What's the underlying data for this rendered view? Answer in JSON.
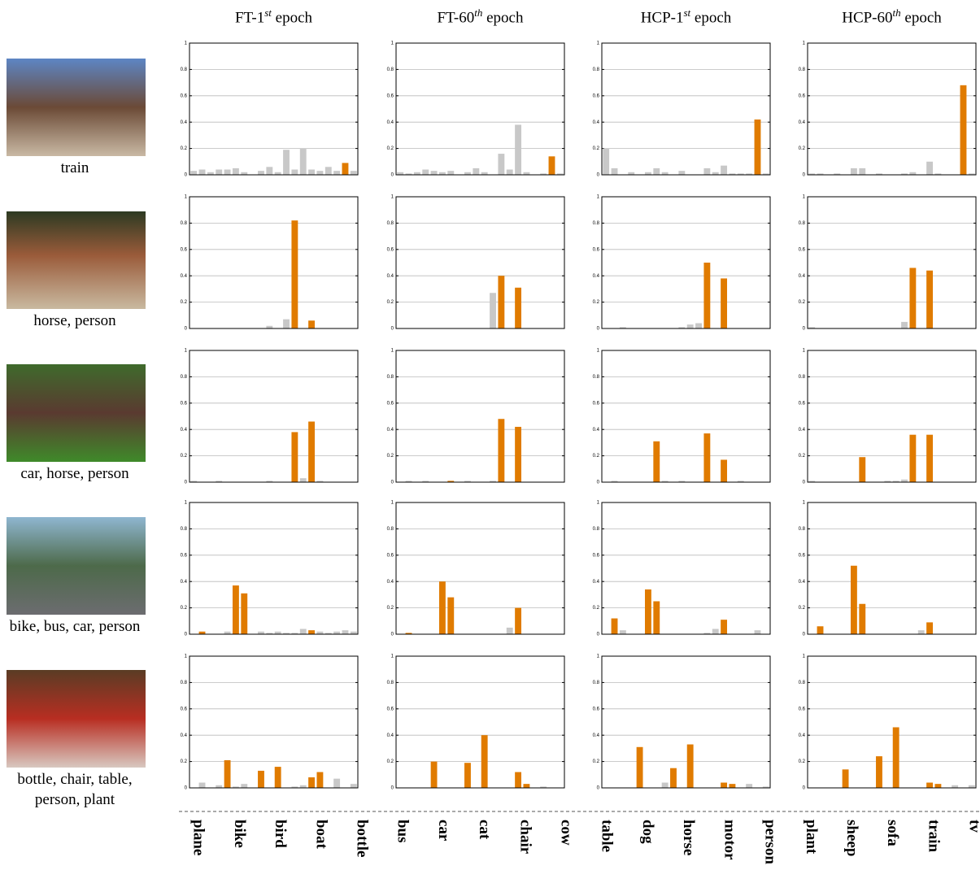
{
  "columns": [
    {
      "text": "FT-1",
      "sup": "st",
      "after": " epoch"
    },
    {
      "text": "FT-60",
      "sup": "th",
      "after": " epoch"
    },
    {
      "text": "HCP-1",
      "sup": "st",
      "after": " epoch"
    },
    {
      "text": "HCP-60",
      "sup": "th",
      "after": " epoch"
    }
  ],
  "rows": [
    {
      "label": "train",
      "highlight": [
        18
      ]
    },
    {
      "label": "horse, person",
      "highlight": [
        12,
        14
      ]
    },
    {
      "label": "car, horse, person",
      "highlight": [
        6,
        12,
        14
      ]
    },
    {
      "label": "bike, bus, car, person",
      "highlight": [
        1,
        5,
        6,
        14
      ]
    },
    {
      "label": "bottle, chair, table, person, plant",
      "highlight": [
        4,
        8,
        10,
        14,
        15
      ]
    }
  ],
  "categories": [
    "plane",
    "bike",
    "bird",
    "boat",
    "bottle",
    "bus",
    "car",
    "cat",
    "chair",
    "cow",
    "table",
    "dog",
    "horse",
    "motor",
    "person",
    "plant",
    "sheep",
    "sofa",
    "train",
    "tv"
  ],
  "chart_data": [
    {
      "type": "bar",
      "values": [
        0.03,
        0.04,
        0.02,
        0.04,
        0.04,
        0.05,
        0.02,
        0,
        0.03,
        0.06,
        0.02,
        0.19,
        0.04,
        0.2,
        0.04,
        0.03,
        0.06,
        0.03,
        0.09,
        0.03
      ],
      "ylim": [
        0,
        1
      ],
      "yticks": [
        0,
        0.2,
        0.4,
        0.6,
        0.8,
        1
      ],
      "grid": true,
      "color": "#c8c8c8",
      "highlight_color": "#e07b00"
    },
    {
      "type": "bar",
      "values": [
        0.02,
        0.01,
        0.02,
        0.04,
        0.03,
        0.02,
        0.03,
        0,
        0.02,
        0.05,
        0.02,
        0,
        0.16,
        0.04,
        0.38,
        0.02,
        0,
        0.01,
        0.14,
        0.01
      ],
      "ylim": [
        0,
        1
      ],
      "yticks": [
        0,
        0.2,
        0.4,
        0.6,
        0.8,
        1
      ],
      "grid": true,
      "color": "#c8c8c8",
      "highlight_color": "#e07b00"
    },
    {
      "type": "bar",
      "values": [
        0.2,
        0.05,
        0,
        0.02,
        0,
        0.02,
        0.05,
        0.02,
        0,
        0.03,
        0,
        0,
        0.05,
        0.02,
        0.07,
        0.01,
        0.01,
        0.01,
        0.42,
        0.01
      ],
      "ylim": [
        0,
        1
      ],
      "yticks": [
        0,
        0.2,
        0.4,
        0.6,
        0.8,
        1
      ],
      "grid": true,
      "color": "#c8c8c8",
      "highlight_color": "#e07b00"
    },
    {
      "type": "bar",
      "values": [
        0.01,
        0.01,
        0,
        0.01,
        0,
        0.05,
        0.05,
        0,
        0.01,
        0,
        0,
        0.01,
        0.02,
        0,
        0.1,
        0.01,
        0,
        0,
        0.68,
        0.01
      ],
      "ylim": [
        0,
        1
      ],
      "yticks": [
        0,
        0.2,
        0.4,
        0.6,
        0.8,
        1
      ],
      "grid": true,
      "color": "#c8c8c8",
      "highlight_color": "#e07b00"
    },
    {
      "type": "bar",
      "values": [
        0,
        0,
        0,
        0,
        0,
        0,
        0,
        0,
        0,
        0.02,
        0,
        0.07,
        0.82,
        0,
        0.06,
        0,
        0,
        0,
        0,
        0
      ],
      "ylim": [
        0,
        1
      ],
      "yticks": [
        0,
        0.2,
        0.4,
        0.6,
        0.8,
        1
      ],
      "grid": true,
      "color": "#c8c8c8",
      "highlight_color": "#e07b00"
    },
    {
      "type": "bar",
      "values": [
        0,
        0,
        0,
        0,
        0,
        0,
        0,
        0,
        0,
        0,
        0,
        0.27,
        0.4,
        0,
        0.31,
        0,
        0,
        0,
        0,
        0
      ],
      "ylim": [
        0,
        1
      ],
      "yticks": [
        0,
        0.2,
        0.4,
        0.6,
        0.8,
        1
      ],
      "grid": true,
      "color": "#c8c8c8",
      "highlight_color": "#e07b00"
    },
    {
      "type": "bar",
      "values": [
        0,
        0,
        0.01,
        0,
        0,
        0,
        0,
        0,
        0,
        0.01,
        0.03,
        0.04,
        0.5,
        0,
        0.38,
        0,
        0,
        0,
        0,
        0
      ],
      "ylim": [
        0,
        1
      ],
      "yticks": [
        0,
        0.2,
        0.4,
        0.6,
        0.8,
        1
      ],
      "grid": true,
      "color": "#c8c8c8",
      "highlight_color": "#e07b00"
    },
    {
      "type": "bar",
      "values": [
        0.01,
        0,
        0,
        0,
        0,
        0,
        0,
        0,
        0,
        0,
        0,
        0.05,
        0.46,
        0,
        0.44,
        0,
        0,
        0,
        0,
        0
      ],
      "ylim": [
        0,
        1
      ],
      "yticks": [
        0,
        0.2,
        0.4,
        0.6,
        0.8,
        1
      ],
      "grid": true,
      "color": "#c8c8c8",
      "highlight_color": "#e07b00"
    },
    {
      "type": "bar",
      "values": [
        0.01,
        0,
        0,
        0.01,
        0,
        0,
        0,
        0,
        0,
        0.01,
        0,
        0,
        0.38,
        0.03,
        0.46,
        0.01,
        0,
        0,
        0,
        0
      ],
      "ylim": [
        0,
        1
      ],
      "yticks": [
        0,
        0.2,
        0.4,
        0.6,
        0.8,
        1
      ],
      "grid": true,
      "color": "#c8c8c8",
      "highlight_color": "#e07b00"
    },
    {
      "type": "bar",
      "values": [
        0,
        0.01,
        0,
        0.01,
        0,
        0,
        0.01,
        0,
        0.01,
        0,
        0,
        0.01,
        0.48,
        0,
        0.42,
        0,
        0,
        0,
        0,
        0
      ],
      "ylim": [
        0,
        1
      ],
      "yticks": [
        0,
        0.2,
        0.4,
        0.6,
        0.8,
        1
      ],
      "grid": true,
      "color": "#c8c8c8",
      "highlight_color": "#e07b00"
    },
    {
      "type": "bar",
      "values": [
        0,
        0.01,
        0,
        0,
        0,
        0,
        0.31,
        0.01,
        0,
        0.01,
        0,
        0,
        0.37,
        0,
        0.17,
        0,
        0.01,
        0,
        0,
        0
      ],
      "ylim": [
        0,
        1
      ],
      "yticks": [
        0,
        0.2,
        0.4,
        0.6,
        0.8,
        1
      ],
      "grid": true,
      "color": "#c8c8c8",
      "highlight_color": "#e07b00"
    },
    {
      "type": "bar",
      "values": [
        0.01,
        0,
        0,
        0,
        0,
        0,
        0.19,
        0,
        0,
        0.01,
        0.01,
        0.02,
        0.36,
        0,
        0.36,
        0,
        0,
        0,
        0,
        0
      ],
      "ylim": [
        0,
        1
      ],
      "yticks": [
        0,
        0.2,
        0.4,
        0.6,
        0.8,
        1
      ],
      "grid": true,
      "color": "#c8c8c8",
      "highlight_color": "#e07b00"
    },
    {
      "type": "bar",
      "values": [
        0,
        0.02,
        0,
        0,
        0.02,
        0.37,
        0.31,
        0,
        0.02,
        0.01,
        0.02,
        0.01,
        0.01,
        0.04,
        0.03,
        0.02,
        0.01,
        0.02,
        0.03,
        0.02
      ],
      "ylim": [
        0,
        1
      ],
      "yticks": [
        0,
        0.2,
        0.4,
        0.6,
        0.8,
        1
      ],
      "grid": true,
      "color": "#c8c8c8",
      "highlight_color": "#e07b00"
    },
    {
      "type": "bar",
      "values": [
        0,
        0.01,
        0,
        0,
        0,
        0.4,
        0.28,
        0,
        0,
        0,
        0,
        0,
        0,
        0.05,
        0.2,
        0,
        0,
        0,
        0,
        0
      ],
      "ylim": [
        0,
        1
      ],
      "yticks": [
        0,
        0.2,
        0.4,
        0.6,
        0.8,
        1
      ],
      "grid": true,
      "color": "#c8c8c8",
      "highlight_color": "#e07b00"
    },
    {
      "type": "bar",
      "values": [
        0,
        0.12,
        0.03,
        0,
        0,
        0.34,
        0.25,
        0,
        0,
        0,
        0,
        0,
        0.01,
        0.04,
        0.11,
        0,
        0,
        0,
        0.03,
        0
      ],
      "ylim": [
        0,
        1
      ],
      "yticks": [
        0,
        0.2,
        0.4,
        0.6,
        0.8,
        1
      ],
      "grid": true,
      "color": "#c8c8c8",
      "highlight_color": "#e07b00"
    },
    {
      "type": "bar",
      "values": [
        0,
        0.06,
        0,
        0,
        0,
        0.52,
        0.23,
        0,
        0,
        0,
        0,
        0,
        0,
        0.03,
        0.09,
        0,
        0,
        0,
        0,
        0
      ],
      "ylim": [
        0,
        1
      ],
      "yticks": [
        0,
        0.2,
        0.4,
        0.6,
        0.8,
        1
      ],
      "grid": true,
      "color": "#c8c8c8",
      "highlight_color": "#e07b00"
    },
    {
      "type": "bar",
      "values": [
        0,
        0.04,
        0,
        0.02,
        0.21,
        0.01,
        0.03,
        0,
        0.13,
        0,
        0.16,
        0,
        0.01,
        0.02,
        0.08,
        0.12,
        0,
        0.07,
        0,
        0.03
      ],
      "ylim": [
        0,
        1
      ],
      "yticks": [
        0,
        0.2,
        0.4,
        0.6,
        0.8,
        1
      ],
      "grid": true,
      "color": "#c8c8c8",
      "highlight_color": "#e07b00"
    },
    {
      "type": "bar",
      "values": [
        0,
        0,
        0,
        0,
        0.2,
        0,
        0,
        0,
        0.19,
        0,
        0.4,
        0,
        0,
        0,
        0.12,
        0.03,
        0,
        0.01,
        0,
        0
      ],
      "ylim": [
        0,
        1
      ],
      "yticks": [
        0,
        0.2,
        0.4,
        0.6,
        0.8,
        1
      ],
      "grid": true,
      "color": "#c8c8c8",
      "highlight_color": "#e07b00"
    },
    {
      "type": "bar",
      "values": [
        0,
        0,
        0,
        0,
        0.31,
        0,
        0,
        0.04,
        0.15,
        0,
        0.33,
        0,
        0,
        0,
        0.04,
        0.03,
        0,
        0.03,
        0,
        0.01
      ],
      "ylim": [
        0,
        1
      ],
      "yticks": [
        0,
        0.2,
        0.4,
        0.6,
        0.8,
        1
      ],
      "grid": true,
      "color": "#c8c8c8",
      "highlight_color": "#e07b00"
    },
    {
      "type": "bar",
      "values": [
        0,
        0,
        0,
        0,
        0.14,
        0,
        0,
        0,
        0.24,
        0,
        0.46,
        0,
        0,
        0,
        0.04,
        0.03,
        0,
        0.02,
        0,
        0.02
      ],
      "ylim": [
        0,
        1
      ],
      "yticks": [
        0,
        0.2,
        0.4,
        0.6,
        0.8,
        1
      ],
      "grid": true,
      "color": "#c8c8c8",
      "highlight_color": "#e07b00"
    }
  ]
}
